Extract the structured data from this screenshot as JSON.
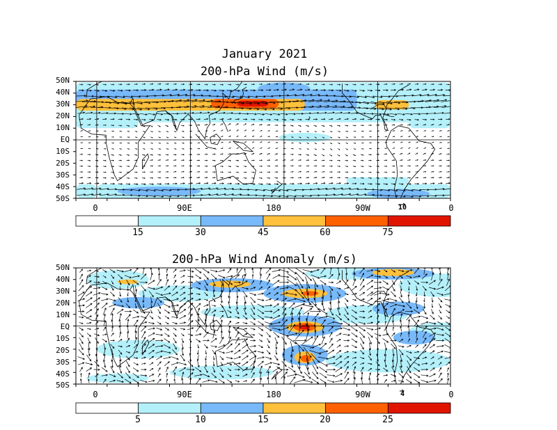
{
  "titles": {
    "main": "January 2021",
    "panel1": "200-hPa Wind (m/s)",
    "panel2": "200-hPa Wind Anomaly (m/s)"
  },
  "lat_labels": [
    "50N",
    "40N",
    "30N",
    "20N",
    "10N",
    "EQ",
    "10S",
    "20S",
    "30S",
    "40S",
    "50S"
  ],
  "lon_labels": [
    "0",
    "90E",
    "180",
    "90W",
    "0"
  ],
  "panel1": {
    "ref_vector": "10",
    "colorbar": {
      "labels": [
        "15",
        "30",
        "45",
        "60",
        "75"
      ],
      "colors": [
        "#ffffff",
        "#b4f0fa",
        "#78b9fa",
        "#ffc03c",
        "#ff6000",
        "#e11400"
      ]
    },
    "jets": [
      {
        "lat_center": 30,
        "lon_from": 0,
        "lon_to": 360,
        "level": 1
      },
      {
        "lat_center": 30,
        "lon_from": 340,
        "lon_to": 200,
        "level": 3
      },
      {
        "lat_center": 31,
        "lon_from": 100,
        "lon_to": 180,
        "level": 4
      },
      {
        "lat_center": 30,
        "lon_from": 265,
        "lon_to": 300,
        "level": 3
      },
      {
        "lat_center": -45,
        "lon_from": 0,
        "lon_to": 360,
        "level": 1
      }
    ]
  },
  "panel2": {
    "ref_vector": "4",
    "colorbar": {
      "labels": [
        "5",
        "10",
        "15",
        "20",
        "25"
      ],
      "colors": [
        "#ffffff",
        "#b4f0fa",
        "#78b9fa",
        "#ffc03c",
        "#ff6000",
        "#e11400"
      ]
    },
    "anomalies": [
      {
        "lat": -1,
        "lon": 200,
        "level": 4
      },
      {
        "lat": 28,
        "lon": 200,
        "level": 3
      },
      {
        "lat": -27,
        "lon": 200,
        "level": 4
      },
      {
        "lat": 35,
        "lon": 130,
        "level": 3
      },
      {
        "lat": 45,
        "lon": 285,
        "level": 3
      }
    ]
  },
  "colors": {
    "coast": "#000000",
    "frame": "#000000"
  }
}
